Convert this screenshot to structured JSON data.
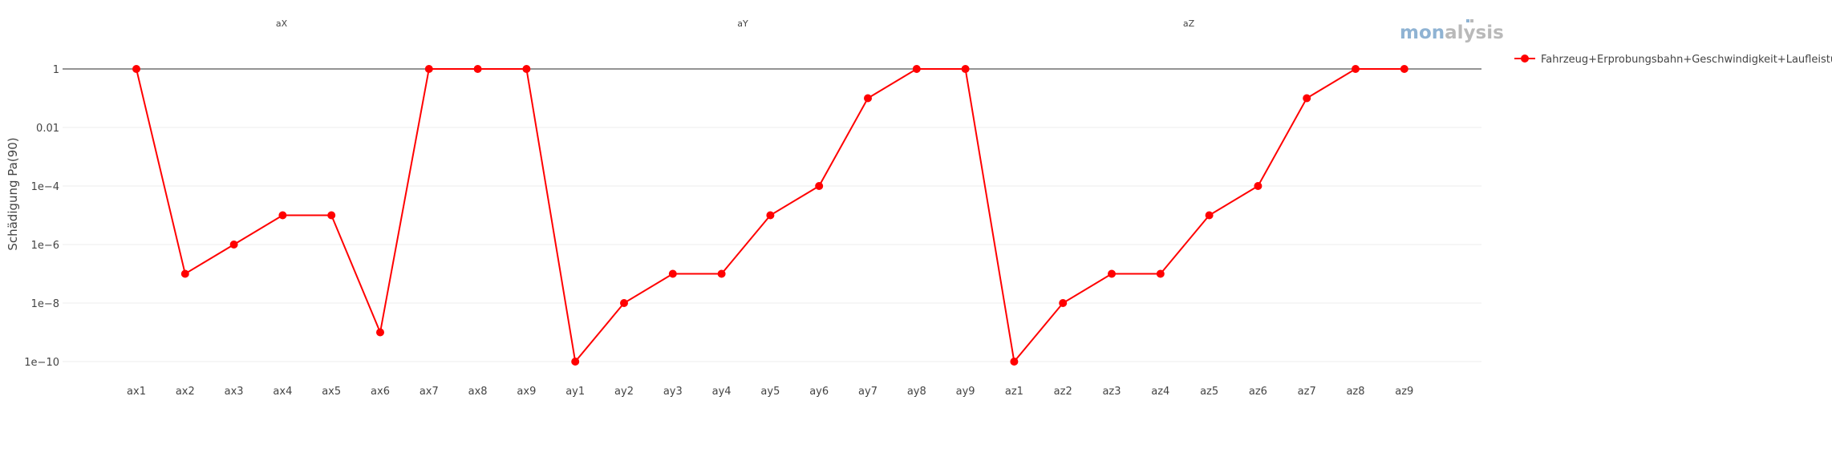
{
  "chart_data": {
    "type": "line",
    "ylabel": "Schädigung Pa(90)",
    "y_scale": "log",
    "ylim": [
      1e-10,
      1
    ],
    "y_ticks": [
      {
        "value": 1,
        "label": "1"
      },
      {
        "value": 0.01,
        "label": "0.01"
      },
      {
        "value": 0.0001,
        "label": "1e−4"
      },
      {
        "value": 1e-06,
        "label": "1e−6"
      },
      {
        "value": 1e-08,
        "label": "1e−8"
      },
      {
        "value": 1e-10,
        "label": "1e−10"
      }
    ],
    "facets": [
      "aX",
      "aY",
      "aZ"
    ],
    "categories": [
      "ax1",
      "ax2",
      "ax3",
      "ax4",
      "ax5",
      "ax6",
      "ax7",
      "ax8",
      "ax9",
      "ay1",
      "ay2",
      "ay3",
      "ay4",
      "ay5",
      "ay6",
      "ay7",
      "ay8",
      "ay9",
      "az1",
      "az2",
      "az3",
      "az4",
      "az5",
      "az6",
      "az7",
      "az8",
      "az9"
    ],
    "series": [
      {
        "name": "Fahrzeug+Erprobungsbahn+Geschwindigkeit+Laufleistung",
        "color": "#ff0000",
        "values": [
          1,
          1e-07,
          1e-06,
          1e-05,
          1e-05,
          1e-09,
          1,
          1,
          1,
          1e-10,
          1e-08,
          1e-07,
          1e-07,
          1e-05,
          0.0001,
          0.1,
          1,
          1,
          1e-10,
          1e-08,
          1e-07,
          1e-07,
          1e-05,
          0.0001,
          0.1,
          1,
          1
        ]
      }
    ],
    "grid": true,
    "legend_position": "top-right"
  },
  "logo": {
    "text_a": "mon",
    "text_b": "alysis"
  }
}
